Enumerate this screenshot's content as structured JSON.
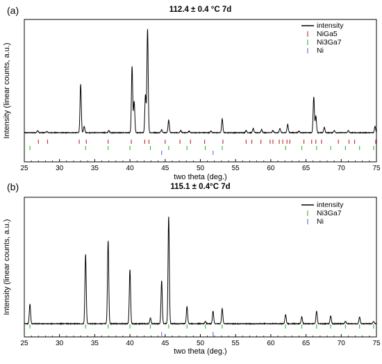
{
  "chart_data": [
    {
      "type": "line",
      "panel_label": "(a)",
      "title": "112.4 ± 0.4 °C 7d",
      "xlabel": "two theta (deg.)",
      "ylabel": "Intensity (linear counts, a.u.)",
      "xlim": [
        25,
        75
      ],
      "xticks": [
        25,
        30,
        35,
        40,
        45,
        50,
        55,
        60,
        65,
        70,
        75
      ],
      "legend_position": "top-right",
      "series": [
        {
          "name": "intensity",
          "color": "#000000",
          "baseline": 0.12,
          "peaks": [
            {
              "x": 26.9,
              "h": 0.02
            },
            {
              "x": 28.2,
              "h": 0.012
            },
            {
              "x": 33.0,
              "h": 0.46
            },
            {
              "x": 33.5,
              "h": 0.06
            },
            {
              "x": 37.0,
              "h": 0.02
            },
            {
              "x": 40.3,
              "h": 0.63
            },
            {
              "x": 40.6,
              "h": 0.3
            },
            {
              "x": 42.2,
              "h": 0.36
            },
            {
              "x": 42.5,
              "h": 0.99
            },
            {
              "x": 44.5,
              "h": 0.03
            },
            {
              "x": 45.5,
              "h": 0.12
            },
            {
              "x": 47.2,
              "h": 0.02
            },
            {
              "x": 48.4,
              "h": 0.015
            },
            {
              "x": 51.5,
              "h": 0.015
            },
            {
              "x": 53.1,
              "h": 0.13
            },
            {
              "x": 56.5,
              "h": 0.02
            },
            {
              "x": 57.5,
              "h": 0.04
            },
            {
              "x": 58.7,
              "h": 0.03
            },
            {
              "x": 60.3,
              "h": 0.02
            },
            {
              "x": 61.3,
              "h": 0.04
            },
            {
              "x": 62.4,
              "h": 0.08
            },
            {
              "x": 64.0,
              "h": 0.015
            },
            {
              "x": 66.1,
              "h": 0.34
            },
            {
              "x": 66.4,
              "h": 0.16
            },
            {
              "x": 67.6,
              "h": 0.05
            },
            {
              "x": 69.0,
              "h": 0.02
            },
            {
              "x": 71.0,
              "h": 0.02
            },
            {
              "x": 74.8,
              "h": 0.06
            }
          ]
        }
      ],
      "reference_patterns": [
        {
          "name": "NiGa5",
          "color": "#cc3333",
          "x": [
            27.0,
            28.3,
            32.8,
            33.8,
            36.9,
            40.2,
            42.1,
            42.7,
            45.0,
            47.1,
            48.6,
            50.6,
            53.2,
            56.5,
            57.3,
            58.6,
            59.9,
            60.3,
            61.2,
            61.7,
            62.3,
            62.7,
            64.7,
            65.8,
            66.4,
            67.2,
            69.6,
            71.1,
            71.9,
            74.9
          ]
        },
        {
          "name": "Ni3Ga7",
          "color": "#44bb44",
          "x": [
            25.8,
            33.7,
            36.9,
            40.0,
            42.9,
            45.5,
            48.1,
            50.7,
            53.1,
            62.1,
            64.4,
            66.5,
            68.5,
            70.6,
            72.6,
            74.6
          ]
        },
        {
          "name": "Ni",
          "color": "#6677dd",
          "x": [
            44.5,
            51.8
          ]
        }
      ]
    },
    {
      "type": "line",
      "panel_label": "(b)",
      "title": "115.1 ± 0.4°C 7d",
      "xlabel": "two theta (deg.)",
      "ylabel": "Intensity (linear counts, a.u.)",
      "xlim": [
        25,
        75
      ],
      "xticks": [
        25,
        30,
        35,
        40,
        45,
        50,
        55,
        60,
        65,
        70,
        75
      ],
      "legend_position": "top-right",
      "series": [
        {
          "name": "intensity",
          "color": "#000000",
          "baseline": 0.05,
          "peaks": [
            {
              "x": 25.8,
              "h": 0.17
            },
            {
              "x": 33.7,
              "h": 0.6
            },
            {
              "x": 36.9,
              "h": 0.72
            },
            {
              "x": 40.0,
              "h": 0.47
            },
            {
              "x": 42.9,
              "h": 0.05
            },
            {
              "x": 44.5,
              "h": 0.37
            },
            {
              "x": 45.5,
              "h": 0.93
            },
            {
              "x": 48.1,
              "h": 0.15
            },
            {
              "x": 50.7,
              "h": 0.02
            },
            {
              "x": 51.8,
              "h": 0.11
            },
            {
              "x": 53.1,
              "h": 0.13
            },
            {
              "x": 62.1,
              "h": 0.08
            },
            {
              "x": 64.4,
              "h": 0.06
            },
            {
              "x": 66.5,
              "h": 0.11
            },
            {
              "x": 68.5,
              "h": 0.07
            },
            {
              "x": 70.6,
              "h": 0.02
            },
            {
              "x": 72.6,
              "h": 0.06
            },
            {
              "x": 74.6,
              "h": 0.02
            }
          ]
        }
      ],
      "reference_patterns": [
        {
          "name": "Ni3Ga7",
          "color": "#44bb44",
          "x": [
            25.8,
            33.7,
            36.9,
            40.0,
            42.9,
            45.5,
            48.1,
            50.7,
            53.1,
            62.1,
            64.4,
            66.5,
            68.5,
            70.6,
            72.6,
            74.6
          ]
        },
        {
          "name": "Ni",
          "color": "#6677dd",
          "x": [
            44.5,
            51.8
          ]
        }
      ]
    }
  ]
}
